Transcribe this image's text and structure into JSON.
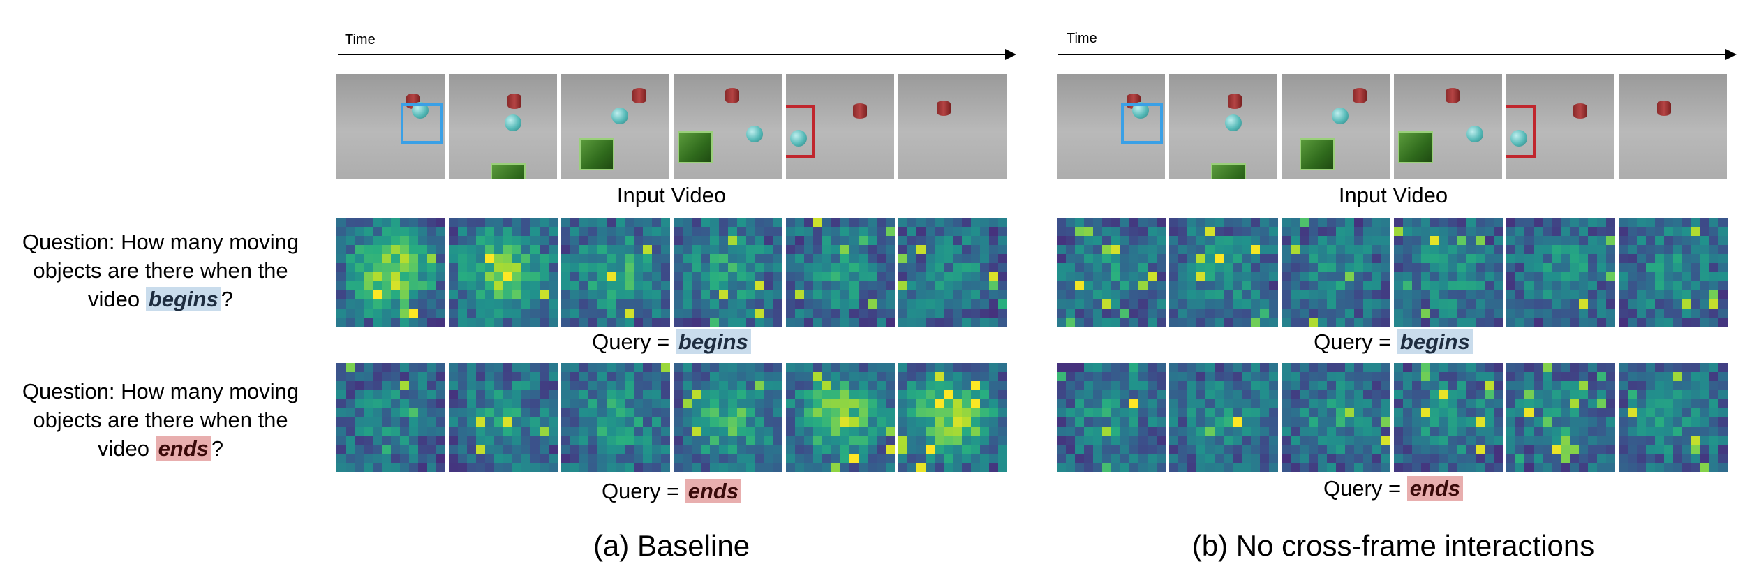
{
  "time_label": "Time",
  "input_video_label": "Input Video",
  "query_label": "Query =",
  "keywords": {
    "begins": "begins",
    "ends": "ends"
  },
  "questions": {
    "begins": {
      "prefix": "Question: How many moving objects are there when the video",
      "keyword": "begins",
      "suffix": "?"
    },
    "ends": {
      "prefix": "Question: How many moving objects are there when the video",
      "keyword": "ends",
      "suffix": "?"
    }
  },
  "panels": [
    {
      "id": "a",
      "title": "(a) Baseline"
    },
    {
      "id": "b",
      "title": "(b) No cross-frame interactions"
    }
  ],
  "colors": {
    "begins_highlight": "#c9dcec",
    "ends_highlight": "#e8aeae",
    "start_box": "#3aa0e6",
    "end_box": "#c0262d",
    "heatmap_low": "#440154",
    "heatmap_high": "#fde725"
  },
  "frames_per_row": 6
}
